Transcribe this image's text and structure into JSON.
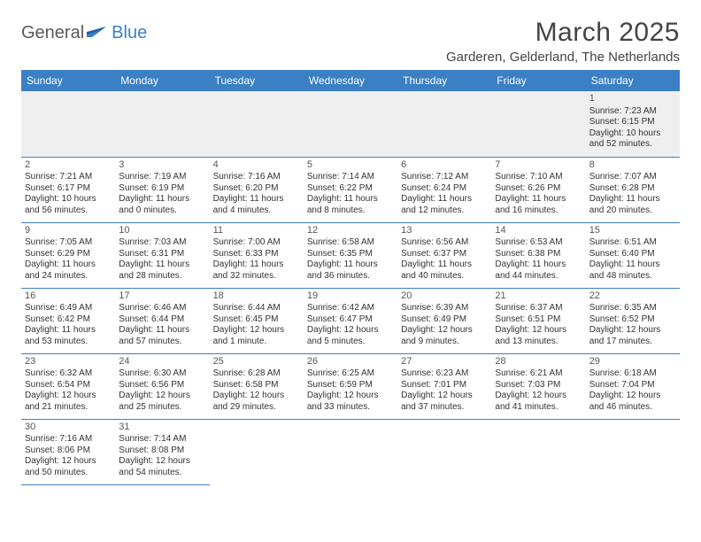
{
  "logo": {
    "main": "General",
    "accent": "Blue"
  },
  "header": {
    "title": "March 2025",
    "location": "Garderen, Gelderland, The Netherlands"
  },
  "colors": {
    "header_bg": "#3b7fc4",
    "header_text": "#ffffff",
    "border": "#3b7fc4",
    "logo_gray": "#5a5a5a",
    "logo_blue": "#3b7fc4",
    "firstrow_bg": "#efefef"
  },
  "day_headers": [
    "Sunday",
    "Monday",
    "Tuesday",
    "Wednesday",
    "Thursday",
    "Friday",
    "Saturday"
  ],
  "weeks": [
    [
      null,
      null,
      null,
      null,
      null,
      null,
      {
        "n": "1",
        "sr": "Sunrise: 7:23 AM",
        "ss": "Sunset: 6:15 PM",
        "dl": "Daylight: 10 hours and 52 minutes."
      }
    ],
    [
      {
        "n": "2",
        "sr": "Sunrise: 7:21 AM",
        "ss": "Sunset: 6:17 PM",
        "dl": "Daylight: 10 hours and 56 minutes."
      },
      {
        "n": "3",
        "sr": "Sunrise: 7:19 AM",
        "ss": "Sunset: 6:19 PM",
        "dl": "Daylight: 11 hours and 0 minutes."
      },
      {
        "n": "4",
        "sr": "Sunrise: 7:16 AM",
        "ss": "Sunset: 6:20 PM",
        "dl": "Daylight: 11 hours and 4 minutes."
      },
      {
        "n": "5",
        "sr": "Sunrise: 7:14 AM",
        "ss": "Sunset: 6:22 PM",
        "dl": "Daylight: 11 hours and 8 minutes."
      },
      {
        "n": "6",
        "sr": "Sunrise: 7:12 AM",
        "ss": "Sunset: 6:24 PM",
        "dl": "Daylight: 11 hours and 12 minutes."
      },
      {
        "n": "7",
        "sr": "Sunrise: 7:10 AM",
        "ss": "Sunset: 6:26 PM",
        "dl": "Daylight: 11 hours and 16 minutes."
      },
      {
        "n": "8",
        "sr": "Sunrise: 7:07 AM",
        "ss": "Sunset: 6:28 PM",
        "dl": "Daylight: 11 hours and 20 minutes."
      }
    ],
    [
      {
        "n": "9",
        "sr": "Sunrise: 7:05 AM",
        "ss": "Sunset: 6:29 PM",
        "dl": "Daylight: 11 hours and 24 minutes."
      },
      {
        "n": "10",
        "sr": "Sunrise: 7:03 AM",
        "ss": "Sunset: 6:31 PM",
        "dl": "Daylight: 11 hours and 28 minutes."
      },
      {
        "n": "11",
        "sr": "Sunrise: 7:00 AM",
        "ss": "Sunset: 6:33 PM",
        "dl": "Daylight: 11 hours and 32 minutes."
      },
      {
        "n": "12",
        "sr": "Sunrise: 6:58 AM",
        "ss": "Sunset: 6:35 PM",
        "dl": "Daylight: 11 hours and 36 minutes."
      },
      {
        "n": "13",
        "sr": "Sunrise: 6:56 AM",
        "ss": "Sunset: 6:37 PM",
        "dl": "Daylight: 11 hours and 40 minutes."
      },
      {
        "n": "14",
        "sr": "Sunrise: 6:53 AM",
        "ss": "Sunset: 6:38 PM",
        "dl": "Daylight: 11 hours and 44 minutes."
      },
      {
        "n": "15",
        "sr": "Sunrise: 6:51 AM",
        "ss": "Sunset: 6:40 PM",
        "dl": "Daylight: 11 hours and 48 minutes."
      }
    ],
    [
      {
        "n": "16",
        "sr": "Sunrise: 6:49 AM",
        "ss": "Sunset: 6:42 PM",
        "dl": "Daylight: 11 hours and 53 minutes."
      },
      {
        "n": "17",
        "sr": "Sunrise: 6:46 AM",
        "ss": "Sunset: 6:44 PM",
        "dl": "Daylight: 11 hours and 57 minutes."
      },
      {
        "n": "18",
        "sr": "Sunrise: 6:44 AM",
        "ss": "Sunset: 6:45 PM",
        "dl": "Daylight: 12 hours and 1 minute."
      },
      {
        "n": "19",
        "sr": "Sunrise: 6:42 AM",
        "ss": "Sunset: 6:47 PM",
        "dl": "Daylight: 12 hours and 5 minutes."
      },
      {
        "n": "20",
        "sr": "Sunrise: 6:39 AM",
        "ss": "Sunset: 6:49 PM",
        "dl": "Daylight: 12 hours and 9 minutes."
      },
      {
        "n": "21",
        "sr": "Sunrise: 6:37 AM",
        "ss": "Sunset: 6:51 PM",
        "dl": "Daylight: 12 hours and 13 minutes."
      },
      {
        "n": "22",
        "sr": "Sunrise: 6:35 AM",
        "ss": "Sunset: 6:52 PM",
        "dl": "Daylight: 12 hours and 17 minutes."
      }
    ],
    [
      {
        "n": "23",
        "sr": "Sunrise: 6:32 AM",
        "ss": "Sunset: 6:54 PM",
        "dl": "Daylight: 12 hours and 21 minutes."
      },
      {
        "n": "24",
        "sr": "Sunrise: 6:30 AM",
        "ss": "Sunset: 6:56 PM",
        "dl": "Daylight: 12 hours and 25 minutes."
      },
      {
        "n": "25",
        "sr": "Sunrise: 6:28 AM",
        "ss": "Sunset: 6:58 PM",
        "dl": "Daylight: 12 hours and 29 minutes."
      },
      {
        "n": "26",
        "sr": "Sunrise: 6:25 AM",
        "ss": "Sunset: 6:59 PM",
        "dl": "Daylight: 12 hours and 33 minutes."
      },
      {
        "n": "27",
        "sr": "Sunrise: 6:23 AM",
        "ss": "Sunset: 7:01 PM",
        "dl": "Daylight: 12 hours and 37 minutes."
      },
      {
        "n": "28",
        "sr": "Sunrise: 6:21 AM",
        "ss": "Sunset: 7:03 PM",
        "dl": "Daylight: 12 hours and 41 minutes."
      },
      {
        "n": "29",
        "sr": "Sunrise: 6:18 AM",
        "ss": "Sunset: 7:04 PM",
        "dl": "Daylight: 12 hours and 46 minutes."
      }
    ],
    [
      {
        "n": "30",
        "sr": "Sunrise: 7:16 AM",
        "ss": "Sunset: 8:06 PM",
        "dl": "Daylight: 12 hours and 50 minutes."
      },
      {
        "n": "31",
        "sr": "Sunrise: 7:14 AM",
        "ss": "Sunset: 8:08 PM",
        "dl": "Daylight: 12 hours and 54 minutes."
      },
      null,
      null,
      null,
      null,
      null
    ]
  ]
}
